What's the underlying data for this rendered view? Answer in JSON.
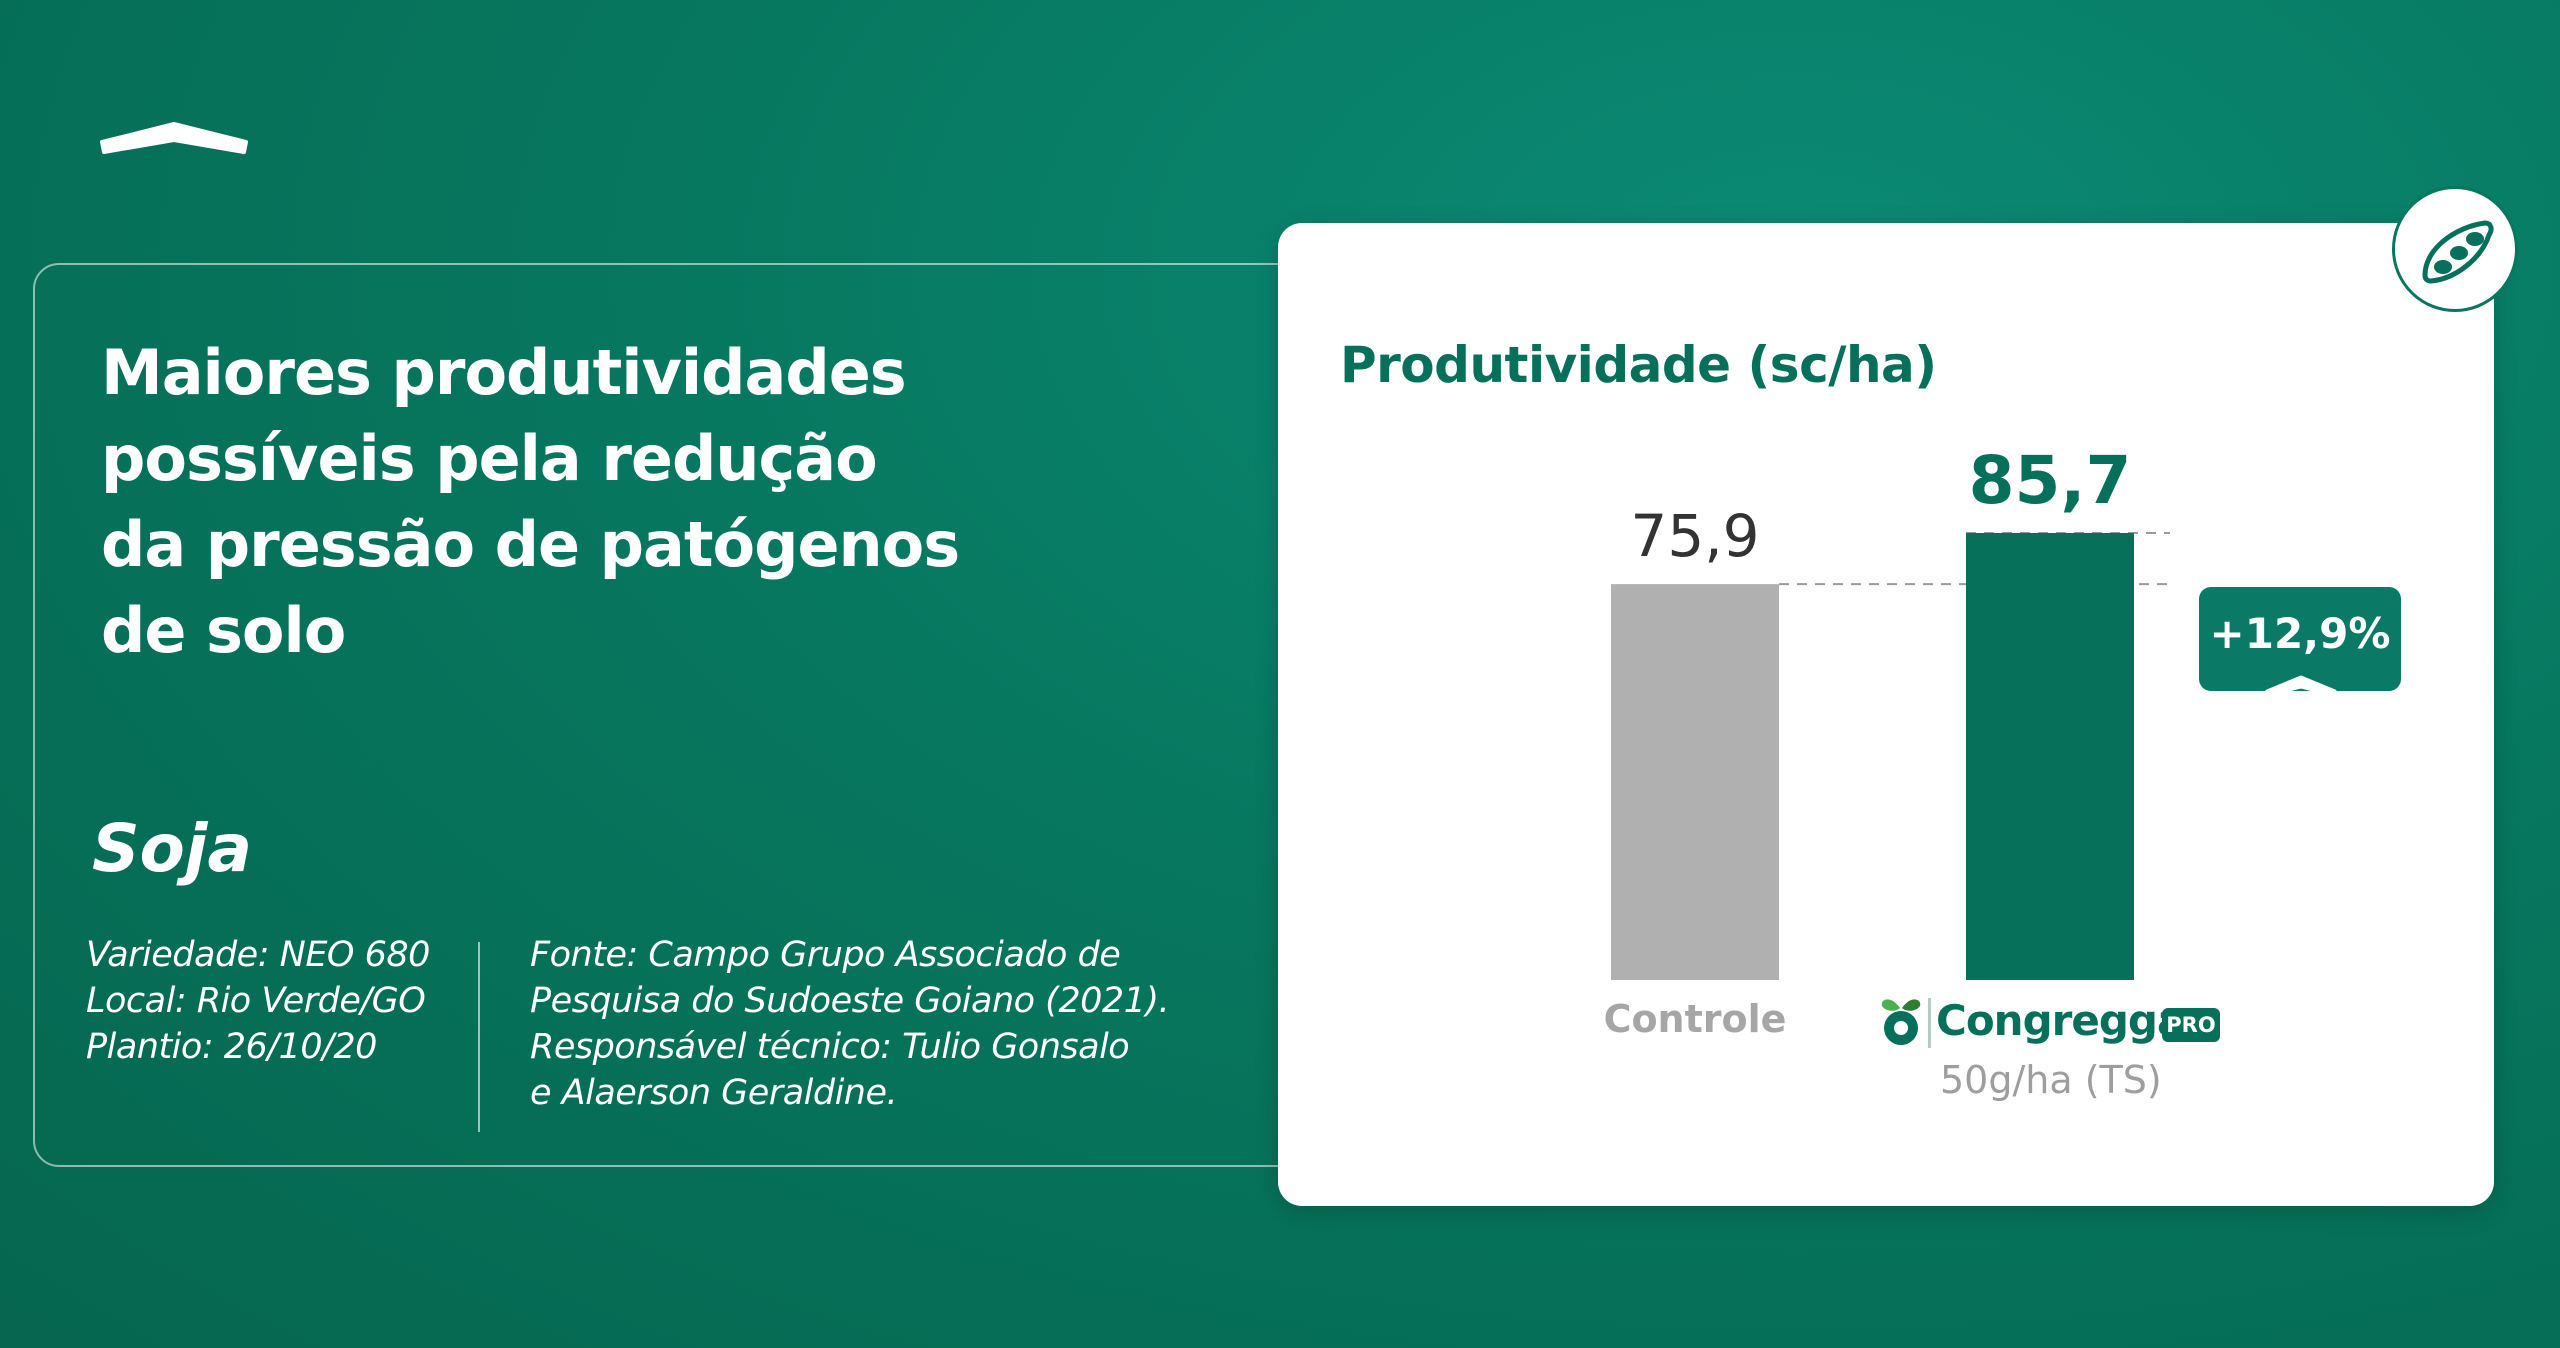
{
  "headline": {
    "lines": [
      "Maiores produtividades",
      "possíveis pela redução",
      "da pressão de patógenos",
      "de solo"
    ]
  },
  "crop": "Soja",
  "trial_details": [
    "Variedade: NEO 680",
    "Local: Rio Verde/GO",
    "Plantio: 26/10/20"
  ],
  "source": [
    "Fonte: Campo Grupo Associado de",
    "Pesquisa do Sudoeste Goiano (2021).",
    "Responsável técnico: Tulio Gonsalo",
    "e Alaerson Geraldine."
  ],
  "badge_icon": "soybean-pod-icon",
  "product": {
    "name": "Congregga",
    "tag": "PRO",
    "dose": "50g/ha (TS)"
  },
  "colors": {
    "background": "#07775f",
    "accent": "#07705a",
    "control_bar": "#b0b0b0",
    "treatment_bar": "#07705a"
  },
  "chart_data": {
    "type": "bar",
    "title": "Produtividade (sc/ha)",
    "categories": [
      "Controle",
      "Congregga PRO 50g/ha (TS)"
    ],
    "values": [
      75.9,
      85.7
    ],
    "value_labels": [
      "75,9",
      "85,7"
    ],
    "category_label": "Controle",
    "increase_label": "+12,9%",
    "ylim": [
      0,
      90
    ],
    "grid": false,
    "legend": "none"
  }
}
